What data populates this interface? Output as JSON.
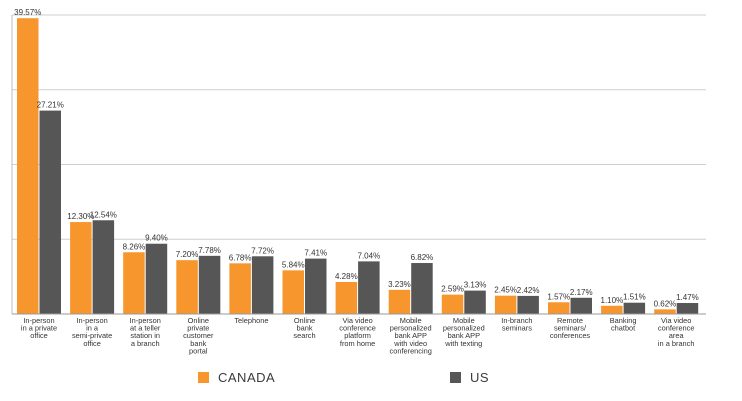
{
  "chart_data": {
    "type": "bar",
    "title": "",
    "xlabel": "",
    "ylabel": "",
    "ylim": [
      0,
      40
    ],
    "grid": true,
    "legend_position": "bottom",
    "categories": [
      [
        "In-person",
        "in a private",
        "office"
      ],
      [
        "In-person",
        "in a",
        "semi-private",
        "office"
      ],
      [
        "In-person",
        "at a teller",
        "station in",
        "a branch"
      ],
      [
        "Online",
        "private",
        "customer",
        "bank",
        "portal"
      ],
      [
        "Telephone"
      ],
      [
        "Online",
        "bank",
        "search"
      ],
      [
        "Via video",
        "conference",
        "platform",
        "from home"
      ],
      [
        "Mobile",
        "personalized",
        "bank APP",
        "with video",
        "conferencing"
      ],
      [
        "Mobile",
        "personalized",
        "bank APP",
        "with texting"
      ],
      [
        "In-branch",
        "seminars"
      ],
      [
        "Remote",
        "seminars/",
        "conferences"
      ],
      [
        "Banking",
        "chatbot"
      ],
      [
        "Via video",
        "conference",
        "area",
        "in a branch"
      ]
    ],
    "series": [
      {
        "name": "CANADA",
        "color": "#f7962d",
        "values": [
          39.57,
          12.3,
          8.26,
          7.2,
          6.78,
          5.84,
          4.28,
          3.23,
          2.59,
          2.45,
          1.57,
          1.1,
          0.62
        ],
        "labels": [
          "39.57%",
          "12.30%",
          "8.26%",
          "7.20%",
          "6.78%",
          "5.84%",
          "4.28%",
          "3.23%",
          "2.59%",
          "2.45%",
          "1.57%",
          "1.10%",
          "0.62%"
        ]
      },
      {
        "name": "US",
        "color": "#565656",
        "values": [
          27.21,
          12.54,
          9.4,
          7.78,
          7.72,
          7.41,
          7.04,
          6.82,
          3.13,
          2.42,
          2.17,
          1.51,
          1.47
        ],
        "labels": [
          "27.21%",
          "12.54%",
          "9.40%",
          "7.78%",
          "7.72%",
          "7.41%",
          "7.04%",
          "6.82%",
          "3.13%",
          "2.42%",
          "2.17%",
          "1.51%",
          "1.47%"
        ]
      }
    ]
  },
  "legend": {
    "canada_label": "CANADA",
    "us_label": "US"
  }
}
